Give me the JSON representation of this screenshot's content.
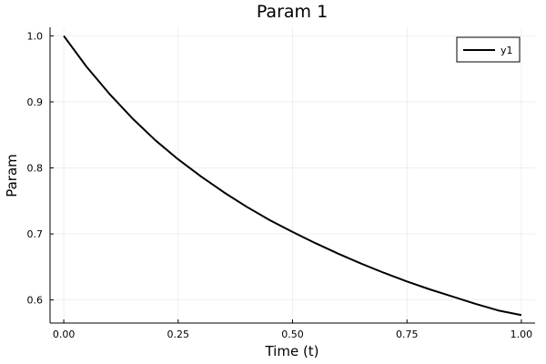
{
  "chart_data": {
    "type": "line",
    "title": "Param 1",
    "xlabel": "Time (t)",
    "ylabel": "Param",
    "xlim": [
      -0.03,
      1.03
    ],
    "ylim": [
      0.565,
      1.013
    ],
    "xticks": [
      0.0,
      0.25,
      0.5,
      0.75,
      1.0
    ],
    "xtick_labels": [
      "0.00",
      "0.25",
      "0.50",
      "0.75",
      "1.00"
    ],
    "yticks": [
      0.6,
      0.7,
      0.8,
      0.9,
      1.0
    ],
    "ytick_labels": [
      "0.6",
      "0.7",
      "0.8",
      "0.9",
      "1.0"
    ],
    "grid": true,
    "legend_position": "top-right",
    "series": [
      {
        "name": "y1",
        "color": "#000000",
        "x": [
          0.0,
          0.05,
          0.1,
          0.15,
          0.2,
          0.25,
          0.3,
          0.35,
          0.4,
          0.45,
          0.5,
          0.55,
          0.6,
          0.65,
          0.7,
          0.75,
          0.8,
          0.85,
          0.9,
          0.95,
          1.0
        ],
        "y": [
          1.0,
          0.953,
          0.912,
          0.875,
          0.842,
          0.813,
          0.787,
          0.763,
          0.741,
          0.721,
          0.703,
          0.686,
          0.67,
          0.655,
          0.641,
          0.628,
          0.616,
          0.605,
          0.594,
          0.584,
          0.577
        ]
      }
    ]
  }
}
